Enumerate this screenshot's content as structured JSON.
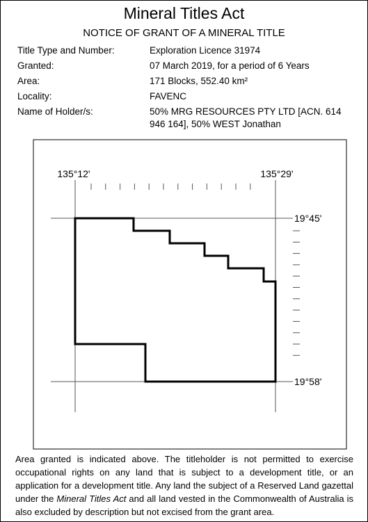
{
  "header": {
    "title": "Mineral Titles Act",
    "subtitle": "NOTICE OF GRANT OF A  MINERAL TITLE"
  },
  "fields": [
    {
      "label": "Title Type and Number:",
      "value": "Exploration Licence 31974"
    },
    {
      "label": "Granted:",
      "value": "07 March 2019, for a period of 6 Years"
    },
    {
      "label": "Area:",
      "value": "171 Blocks, 552.40 km²"
    },
    {
      "label": "Locality:",
      "value": "FAVENC"
    },
    {
      "label": "Name of Holder/s:",
      "value": "50% MRG RESOURCES PTY LTD [ACN. 614 946 164], 50% WEST Jonathan"
    }
  ],
  "map": {
    "longitude_labels": [
      "135°12'",
      "135°29'"
    ],
    "latitude_labels": [
      "19°45'",
      "19°58'"
    ]
  },
  "footer": {
    "text_before": "Area granted is indicated above. The titleholder is not permitted to exercise occupational rights on any land that is subject to a development title, or an application for a development title. Any land the subject of a Reserved Land gazettal under the ",
    "italic": "Mineral Titles Act",
    "text_after": " and all land vested in the Commonwealth of Australia is also excluded by description but not excised from the grant area."
  }
}
